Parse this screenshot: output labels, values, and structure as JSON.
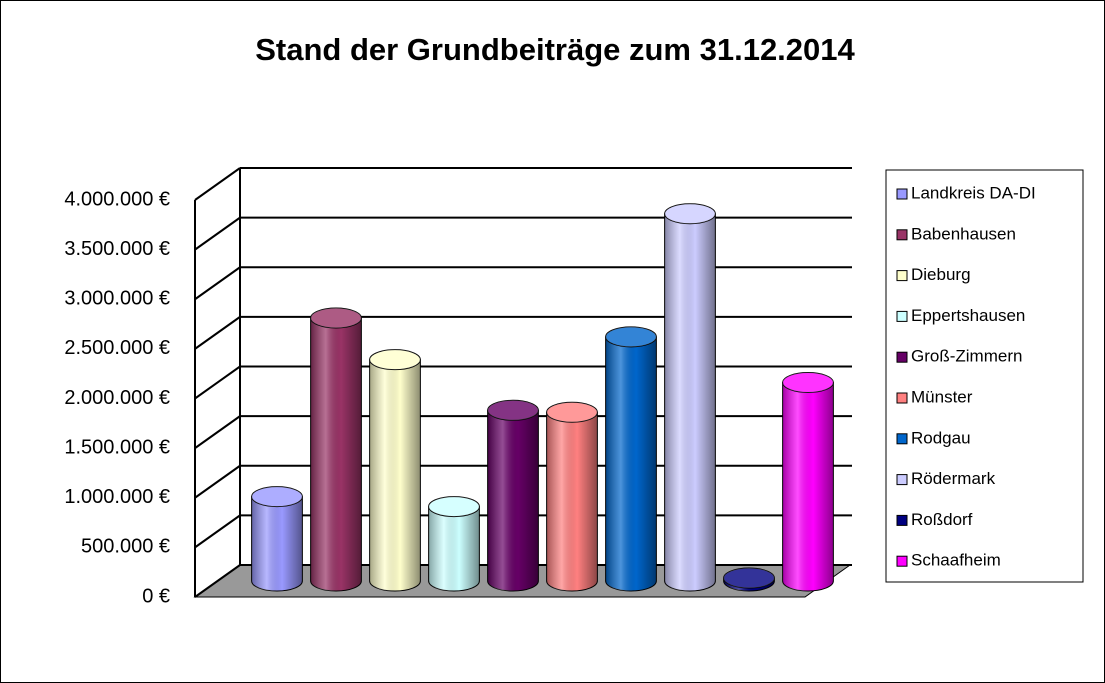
{
  "chart_data": {
    "type": "bar",
    "title": "Stand der Grundbeiträge zum 31.12.2014",
    "series": [
      {
        "name": "Landkreis DA-DI",
        "color": "#9999ff",
        "values": [
          850000
        ]
      },
      {
        "name": "Babenhausen",
        "color": "#993366",
        "values": [
          2650000
        ]
      },
      {
        "name": "Dieburg",
        "color": "#ffffcc",
        "values": [
          2230000
        ]
      },
      {
        "name": "Eppertshausen",
        "color": "#ccffff",
        "values": [
          750000
        ]
      },
      {
        "name": "Groß-Zimmern",
        "color": "#660066",
        "values": [
          1720000
        ]
      },
      {
        "name": "Münster",
        "color": "#ff8080",
        "values": [
          1700000
        ]
      },
      {
        "name": "Rodgau",
        "color": "#0066cc",
        "values": [
          2460000
        ]
      },
      {
        "name": "Rödermark",
        "color": "#ccccff",
        "values": [
          3700000
        ]
      },
      {
        "name": "Roßdorf",
        "color": "#000080",
        "values": [
          30000
        ]
      },
      {
        "name": "Schaafheim",
        "color": "#ff00ff",
        "values": [
          2000000
        ]
      }
    ],
    "ylim": [
      0,
      4000000
    ],
    "yticks": [
      {
        "value": 0,
        "label": "0 €"
      },
      {
        "value": 500000,
        "label": "500.000 €"
      },
      {
        "value": 1000000,
        "label": "1.000.000 €"
      },
      {
        "value": 1500000,
        "label": "1.500.000 €"
      },
      {
        "value": 2000000,
        "label": "2.000.000 €"
      },
      {
        "value": 2500000,
        "label": "2.500.000 €"
      },
      {
        "value": 3000000,
        "label": "3.000.000 €"
      },
      {
        "value": 3500000,
        "label": "3.500.000 €"
      },
      {
        "value": 4000000,
        "label": "4.000.000 €"
      }
    ],
    "grid": true,
    "legend": "right"
  }
}
